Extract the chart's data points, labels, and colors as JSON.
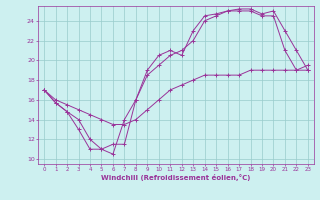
{
  "xlabel": "Windchill (Refroidissement éolien,°C)",
  "bg_color": "#cdf0f0",
  "line_color": "#993399",
  "grid_color": "#99cccc",
  "xlim": [
    -0.5,
    23.5
  ],
  "ylim": [
    9.5,
    25.5
  ],
  "yticks": [
    10,
    12,
    14,
    16,
    18,
    20,
    22,
    24
  ],
  "xticks": [
    0,
    1,
    2,
    3,
    4,
    5,
    6,
    7,
    8,
    9,
    10,
    11,
    12,
    13,
    14,
    15,
    16,
    17,
    18,
    19,
    20,
    21,
    22,
    23
  ],
  "series": [
    [
      17.0,
      15.7,
      14.8,
      13.0,
      11.0,
      11.0,
      10.5,
      14.0,
      16.0,
      19.0,
      20.5,
      21.0,
      20.5,
      23.0,
      24.5,
      24.7,
      25.0,
      25.0,
      25.0,
      24.5,
      24.5,
      21.0,
      19.0,
      19.0
    ],
    [
      17.0,
      15.7,
      14.8,
      14.0,
      12.0,
      11.0,
      11.5,
      11.5,
      16.0,
      18.5,
      19.5,
      20.5,
      21.0,
      22.0,
      24.0,
      24.5,
      25.0,
      25.2,
      25.2,
      24.7,
      25.0,
      23.0,
      21.0,
      19.0
    ],
    [
      17.0,
      16.0,
      15.5,
      15.0,
      14.5,
      14.0,
      13.5,
      13.5,
      14.0,
      15.0,
      16.0,
      17.0,
      17.5,
      18.0,
      18.5,
      18.5,
      18.5,
      18.5,
      19.0,
      19.0,
      19.0,
      19.0,
      19.0,
      19.5
    ]
  ]
}
